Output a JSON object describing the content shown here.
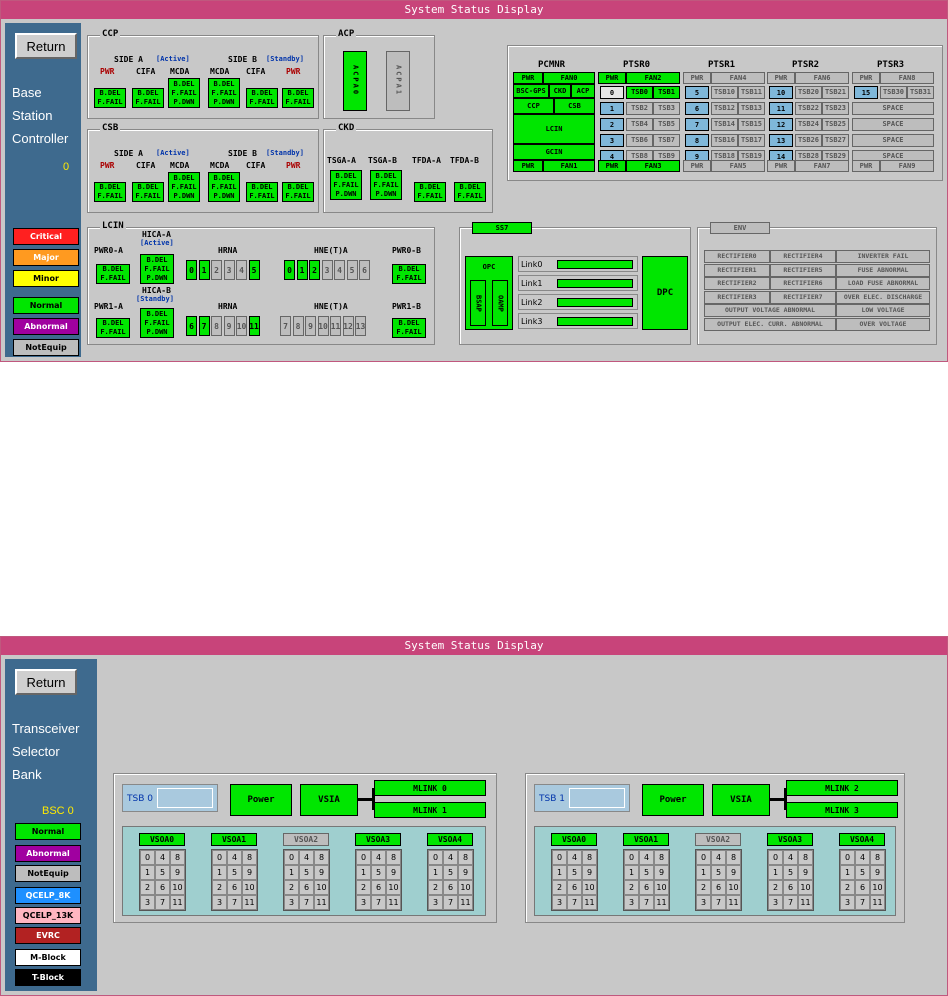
{
  "window_title": "System Status Display",
  "w1": {
    "return": "Return",
    "side_lines": [
      "Base",
      "Station",
      "Controller"
    ],
    "side_value": "0",
    "legend": [
      {
        "label": "Critical",
        "bg": "#ff2020",
        "fg": "#fff"
      },
      {
        "label": "Major",
        "bg": "#ff9a20",
        "fg": "#fff"
      },
      {
        "label": "Minor",
        "bg": "#ffff00",
        "fg": "#000"
      },
      {
        "label": "Normal",
        "bg": "#00e600",
        "fg": "#000"
      },
      {
        "label": "Abnormal",
        "bg": "#a000a0",
        "fg": "#fff"
      },
      {
        "label": "NotEquip",
        "bg": "#bdbdbd",
        "fg": "#000"
      }
    ],
    "ccp": {
      "title": "CCP",
      "side_a": "SIDE A",
      "active": "[Active]",
      "side_b": "SIDE B",
      "standby": "[Standby]",
      "pwr": "PWR",
      "cifa": "CIFA",
      "mcda": "MCDA",
      "bdel": "B.DEL",
      "ffail": "F.FAIL",
      "pdwn": "P.DWN"
    },
    "csb": {
      "title": "CSB"
    },
    "acp": {
      "title": "ACP",
      "a0": "ACPA0",
      "a1": "ACPA1"
    },
    "ckd": {
      "title": "CKD",
      "tsga_a": "TSGA-A",
      "tsga_b": "TSGA-B",
      "tfda_a": "TFDA-A",
      "tfda_b": "TFDA-B"
    },
    "pcmnr": {
      "title": "PCMNR",
      "pwr": "PWR",
      "fan0": "FAN0",
      "bscgps": "BSC-GPS",
      "ckd": "CKD",
      "acp": "ACP",
      "ccp": "CCP",
      "csb": "CSB",
      "lcin": "LCIN",
      "gcin": "GCIN",
      "fan1": "FAN1"
    },
    "ptsr": [
      {
        "title": "PTSR0",
        "pwr": "PWR",
        "fan_top": "FAN2",
        "fan_bot": "FAN3",
        "nums": [
          "0",
          "1",
          "2",
          "3",
          "4"
        ],
        "ts": [
          [
            "TSB0",
            "TSB1"
          ],
          [
            "TSB2",
            "TSB3"
          ],
          [
            "TSB4",
            "TSB5"
          ],
          [
            "TSB6",
            "TSB7"
          ],
          [
            "TSB8",
            "TSB9"
          ]
        ]
      },
      {
        "title": "PTSR1",
        "pwr": "PWR",
        "fan_top": "FAN4",
        "fan_bot": "FAN5",
        "nums": [
          "5",
          "6",
          "7",
          "8",
          "9"
        ],
        "ts": [
          [
            "TSB10",
            "TSB11"
          ],
          [
            "TSB12",
            "TSB13"
          ],
          [
            "TSB14",
            "TSB15"
          ],
          [
            "TSB16",
            "TSB17"
          ],
          [
            "TSB18",
            "TSB19"
          ]
        ]
      },
      {
        "title": "PTSR2",
        "pwr": "PWR",
        "fan_top": "FAN6",
        "fan_bot": "FAN7",
        "nums": [
          "10",
          "11",
          "12",
          "13",
          "14"
        ],
        "ts": [
          [
            "TSB20",
            "TSB21"
          ],
          [
            "TSB22",
            "TSB23"
          ],
          [
            "TSB24",
            "TSB25"
          ],
          [
            "TSB26",
            "TSB27"
          ],
          [
            "TSB28",
            "TSB29"
          ]
        ]
      },
      {
        "title": "PTSR3",
        "pwr": "PWR",
        "fan_top": "FAN8",
        "fan_bot": "FAN9",
        "num15": "15",
        "ts15": [
          "TSB30",
          "TSB31"
        ],
        "space": "SPACE"
      }
    ],
    "lcin": {
      "title": "LCIN",
      "pwr0a": "PWR0-A",
      "pwr0b": "PWR0-B",
      "pwr1a": "PWR1-A",
      "pwr1b": "PWR1-B",
      "hica_a": "HICA-A",
      "active": "[Active]",
      "hica_b": "HICA-B",
      "standby": "[Standby]",
      "hrna": "HRNA",
      "hnea": "HNE(T)A",
      "hrna_top": [
        "0",
        "1",
        "2",
        "3",
        "4",
        "5"
      ],
      "hnea_top": [
        "0",
        "1",
        "2",
        "3",
        "4",
        "5",
        "6"
      ],
      "hrna_bot": [
        "6",
        "7",
        "8",
        "9",
        "10",
        "11"
      ],
      "hnea_bot": [
        "7",
        "8",
        "9",
        "10",
        "11",
        "12",
        "13"
      ]
    },
    "ss7": {
      "title": "SS7",
      "opc": "OPC",
      "bsap": "BSAP",
      "oamp": "OAMP",
      "dpc": "DPC",
      "links": [
        "Link0",
        "Link1",
        "Link2",
        "Link3"
      ]
    },
    "env": {
      "title": "ENV",
      "items": [
        "RECTIFIER0",
        "RECTIFIER4",
        "INVERTER FAIL",
        "RECTIFIER1",
        "RECTIFIER5",
        "FUSE ABNORMAL",
        "RECTIFIER2",
        "RECTIFIER6",
        "LOAD FUSE ABNORMAL",
        "RECTIFIER3",
        "RECTIFIER7",
        "OVER ELEC. DISCHARGE",
        "OUTPUT VOLTAGE ABNORMAL",
        "",
        "LOW VOLTAGE",
        "OUTPUT ELEC. CURR. ABNORMAL",
        "",
        "OVER VOLTAGE"
      ]
    }
  },
  "w2": {
    "return": "Return",
    "side_lines": [
      "Transceiver",
      "Selector",
      "Bank"
    ],
    "side_value": "BSC 0",
    "legend": [
      {
        "label": "Normal",
        "bg": "#00e600",
        "fg": "#000"
      },
      {
        "label": "Abnormal",
        "bg": "#a000a0",
        "fg": "#fff"
      },
      {
        "label": "NotEquip",
        "bg": "#bdbdbd",
        "fg": "#000"
      },
      {
        "label": "QCELP_8K",
        "bg": "#1e90ff",
        "fg": "#fff"
      },
      {
        "label": "QCELP_13K",
        "bg": "#ffb6c1",
        "fg": "#000"
      },
      {
        "label": "EVRC",
        "bg": "#b22222",
        "fg": "#fff"
      },
      {
        "label": "M-Block",
        "bg": "#ffffff",
        "fg": "#000"
      },
      {
        "label": "T-Block",
        "bg": "#000000",
        "fg": "#fff"
      }
    ],
    "tsb": [
      {
        "label": "TSB 0",
        "power": "Power",
        "vsia": "VSIA",
        "mlinks": [
          "MLINK 0",
          "MLINK 1"
        ]
      },
      {
        "label": "TSB 1",
        "power": "Power",
        "vsia": "VSIA",
        "mlinks": [
          "MLINK 2",
          "MLINK 3"
        ]
      }
    ],
    "vsoa": [
      "VSOA0",
      "VSOA1",
      "VSOA2",
      "VSOA3",
      "VSOA4"
    ],
    "grid": [
      "0",
      "4",
      "8",
      "1",
      "5",
      "9",
      "2",
      "6",
      "10",
      "3",
      "7",
      "11"
    ]
  }
}
